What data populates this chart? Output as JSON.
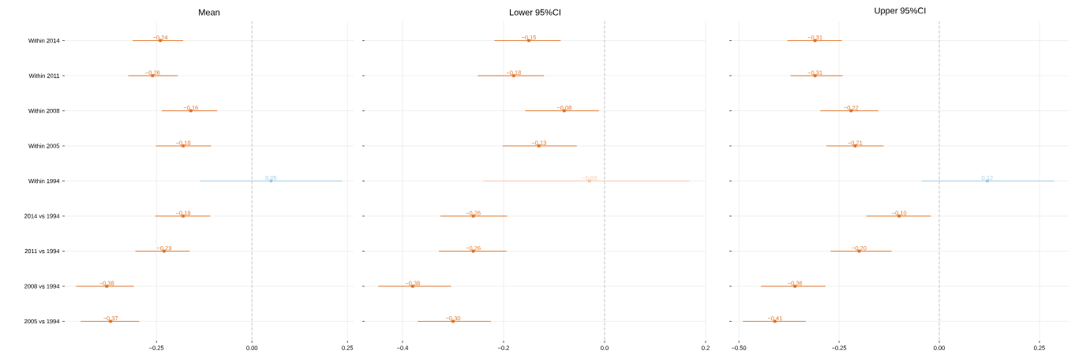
{
  "chart_data": [
    {
      "type": "scatter",
      "orientation": "horizontal",
      "title": "Mean",
      "categories": [
        "Within 2014",
        "Within 2011",
        "Within 2008",
        "Within 2005",
        "Within 1994",
        "2014 vs 1994",
        "2011 vs 1994",
        "2008 vs 1994",
        "2005 vs 1994"
      ],
      "values": [
        -0.24,
        -0.26,
        -0.16,
        -0.18,
        0.05,
        -0.18,
        -0.23,
        -0.38,
        -0.37
      ],
      "value_labels": [
        "−0.24",
        "−0.26",
        "−0.16",
        "−0.18",
        "0.05",
        "−0.18",
        "−0.23",
        "−0.38",
        "−0.37"
      ],
      "errors": [
        [
          -0.312,
          -0.18
        ],
        [
          -0.324,
          -0.194
        ],
        [
          -0.236,
          -0.091
        ],
        [
          -0.251,
          -0.107
        ],
        [
          -0.136,
          0.236
        ],
        [
          -0.253,
          -0.109
        ],
        [
          -0.305,
          -0.163
        ],
        [
          -0.46,
          -0.309
        ],
        [
          -0.448,
          -0.295
        ]
      ],
      "colors": [
        "#e07020",
        "#e07020",
        "#e07020",
        "#e07020",
        "#9ecae1",
        "#e07020",
        "#e07020",
        "#e07020",
        "#e07020"
      ],
      "xlim": [
        -0.49,
        0.266
      ],
      "xticks": [
        {
          "value": -0.25,
          "label": "−0.25"
        },
        {
          "value": 0,
          "label": "0.00"
        },
        {
          "value": 0.25,
          "label": "0.25"
        }
      ],
      "ref_lines": [
        {
          "axis": "x",
          "value": 0,
          "color": "#aaaaaa",
          "line_style": "dashed"
        }
      ],
      "grid": true,
      "marker": "square"
    },
    {
      "type": "scatter",
      "orientation": "horizontal",
      "title": "Lower 95%CI",
      "categories": [
        null,
        null,
        null,
        null,
        null,
        null,
        null,
        null,
        null
      ],
      "values": [
        -0.15,
        -0.18,
        -0.08,
        -0.13,
        -0.03,
        -0.26,
        -0.26,
        -0.38,
        -0.3
      ],
      "value_labels": [
        "−0.15",
        "−0.18",
        "−0.08",
        "−0.13",
        "−0.03",
        "−0.26",
        "−0.26",
        "−0.38",
        "−0.30"
      ],
      "errors": [
        [
          -0.218,
          -0.087
        ],
        [
          -0.251,
          -0.12
        ],
        [
          -0.157,
          -0.011
        ],
        [
          -0.202,
          -0.055
        ],
        [
          -0.24,
          0.169
        ],
        [
          -0.325,
          -0.193
        ],
        [
          -0.328,
          -0.194
        ],
        [
          -0.448,
          -0.304
        ],
        [
          -0.37,
          -0.225
        ]
      ],
      "colors": [
        "#e07020",
        "#e07020",
        "#e07020",
        "#e07020",
        "#f5c6a5",
        "#e07020",
        "#e07020",
        "#e07020",
        "#e07020"
      ],
      "xlim": [
        -0.475,
        0.2
      ],
      "xticks": [
        {
          "value": -0.4,
          "label": "−0.4"
        },
        {
          "value": -0.2,
          "label": "−0.2"
        },
        {
          "value": 0,
          "label": "0.0"
        },
        {
          "value": 0.2,
          "label": "0.2"
        }
      ],
      "ref_lines": [
        {
          "axis": "x",
          "value": 0,
          "color": "#aaaaaa",
          "line_style": "dashed"
        }
      ],
      "grid": true,
      "marker": "square",
      "tick_labels": "x"
    },
    {
      "type": "scatter",
      "orientation": "horizontal",
      "title": "Upper 95%CI",
      "categories": [
        null,
        null,
        null,
        null,
        null,
        null,
        null,
        null,
        null
      ],
      "values": [
        -0.31,
        -0.31,
        -0.22,
        -0.21,
        0.12,
        -0.1,
        -0.2,
        -0.36,
        -0.41
      ],
      "value_labels": [
        "−0.31",
        "−0.31",
        "−0.22",
        "−0.21",
        "0.12",
        "−0.10",
        "−0.20",
        "−0.36",
        "−0.41"
      ],
      "errors": [
        [
          -0.379,
          -0.243
        ],
        [
          -0.371,
          -0.241
        ],
        [
          -0.297,
          -0.152
        ],
        [
          -0.282,
          -0.139
        ],
        [
          -0.044,
          0.287
        ],
        [
          -0.182,
          -0.021
        ],
        [
          -0.271,
          -0.119
        ],
        [
          -0.445,
          -0.284
        ],
        [
          -0.49,
          -0.333
        ]
      ],
      "colors": [
        "#e07020",
        "#e07020",
        "#e07020",
        "#e07020",
        "#9ecae1",
        "#e07020",
        "#e07020",
        "#e07020",
        "#e07020"
      ],
      "xlim": [
        -0.518,
        0.323
      ],
      "xticks": [
        {
          "value": -0.5,
          "label": "−0.50"
        },
        {
          "value": -0.25,
          "label": "−0.25"
        },
        {
          "value": 0,
          "label": "0.00"
        },
        {
          "value": 0.25,
          "label": "0.25"
        }
      ],
      "ref_lines": [
        {
          "axis": "x",
          "value": 0,
          "color": "#aaaaaa",
          "line_style": "dashed"
        }
      ],
      "grid": true,
      "marker": "square",
      "tick_labels": "x"
    }
  ]
}
